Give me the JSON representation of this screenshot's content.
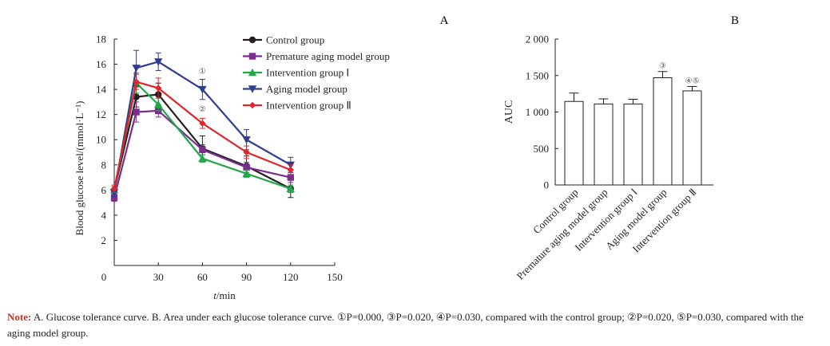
{
  "chart_data": [
    {
      "panel": "A",
      "type": "line",
      "ylabel": "Blood glucose level/(mmol·L⁻¹)",
      "xlabel_italic": "t",
      "xlabel_rest": "/min",
      "xlim": [
        0,
        150
      ],
      "ylim": [
        0,
        18
      ],
      "x_ticks": [
        0,
        30,
        60,
        90,
        120,
        150
      ],
      "y_ticks": [
        2,
        4,
        6,
        8,
        10,
        12,
        14,
        16,
        18
      ],
      "x": [
        0,
        15,
        30,
        60,
        90,
        120
      ],
      "series": [
        {
          "name": "Control group",
          "color": "#231f20",
          "marker": "circle",
          "values": [
            6.0,
            13.4,
            13.6,
            9.3,
            7.9,
            6.1
          ],
          "errors": [
            0.3,
            0.8,
            0.9,
            1.0,
            0.8,
            0.7
          ]
        },
        {
          "name": "Premature aging model group",
          "color": "#7b2d8e",
          "marker": "square",
          "values": [
            5.4,
            12.2,
            12.3,
            9.2,
            7.8,
            7.0
          ],
          "errors": [
            0.3,
            0.8,
            0.5,
            0.4,
            0.4,
            0.4
          ]
        },
        {
          "name": "Intervention group Ⅰ",
          "color": "#22a84a",
          "marker": "triangle-up",
          "values": [
            6.0,
            14.5,
            12.8,
            8.5,
            7.3,
            6.1
          ],
          "errors": [
            0.3,
            0.8,
            0.5,
            0.3,
            0.3,
            0.3
          ]
        },
        {
          "name": "Aging model group",
          "color": "#2f3d8f",
          "marker": "triangle-down",
          "values": [
            5.8,
            15.7,
            16.2,
            14.0,
            10.0,
            8.0
          ],
          "errors": [
            0.3,
            1.4,
            0.7,
            0.8,
            0.8,
            0.6
          ]
        },
        {
          "name": "Intervention group Ⅱ",
          "color": "#e0252b",
          "marker": "diamond",
          "values": [
            6.1,
            14.6,
            14.1,
            11.3,
            9.0,
            7.6
          ],
          "errors": [
            0.3,
            0.6,
            0.8,
            0.4,
            0.5,
            0.4
          ]
        }
      ],
      "annotations": [
        {
          "text": "①",
          "x": 60,
          "y": 15.5
        },
        {
          "text": "②",
          "x": 60,
          "y": 12.5
        }
      ]
    },
    {
      "panel": "B",
      "type": "bar",
      "ylabel": "AUC",
      "ylim": [
        0,
        2000
      ],
      "y_ticks": [
        0,
        500,
        1000,
        1500,
        2000
      ],
      "y_tick_labels": [
        "0",
        "500",
        "1 000",
        "1 500",
        "2 000"
      ],
      "categories": [
        "Control group",
        "Premature aging model group",
        "Intervention group Ⅰ",
        "Aging model group",
        "Intervention group Ⅱ"
      ],
      "values": [
        1145,
        1110,
        1110,
        1470,
        1290
      ],
      "errors": [
        115,
        70,
        65,
        85,
        60
      ],
      "annotations": [
        "",
        "",
        "",
        "③",
        "④⑤"
      ]
    }
  ],
  "panel_labels": {
    "a": "A",
    "b": "B"
  },
  "note": {
    "label": "Note:",
    "text": " A. Glucose tolerance curve. B. Area under each glucose tolerance curve. ①P=0.000, ③P=0.020, ④P=0.030, compared with the control group; ②P=0.020, ⑤P=0.030, compared with the aging model group."
  }
}
